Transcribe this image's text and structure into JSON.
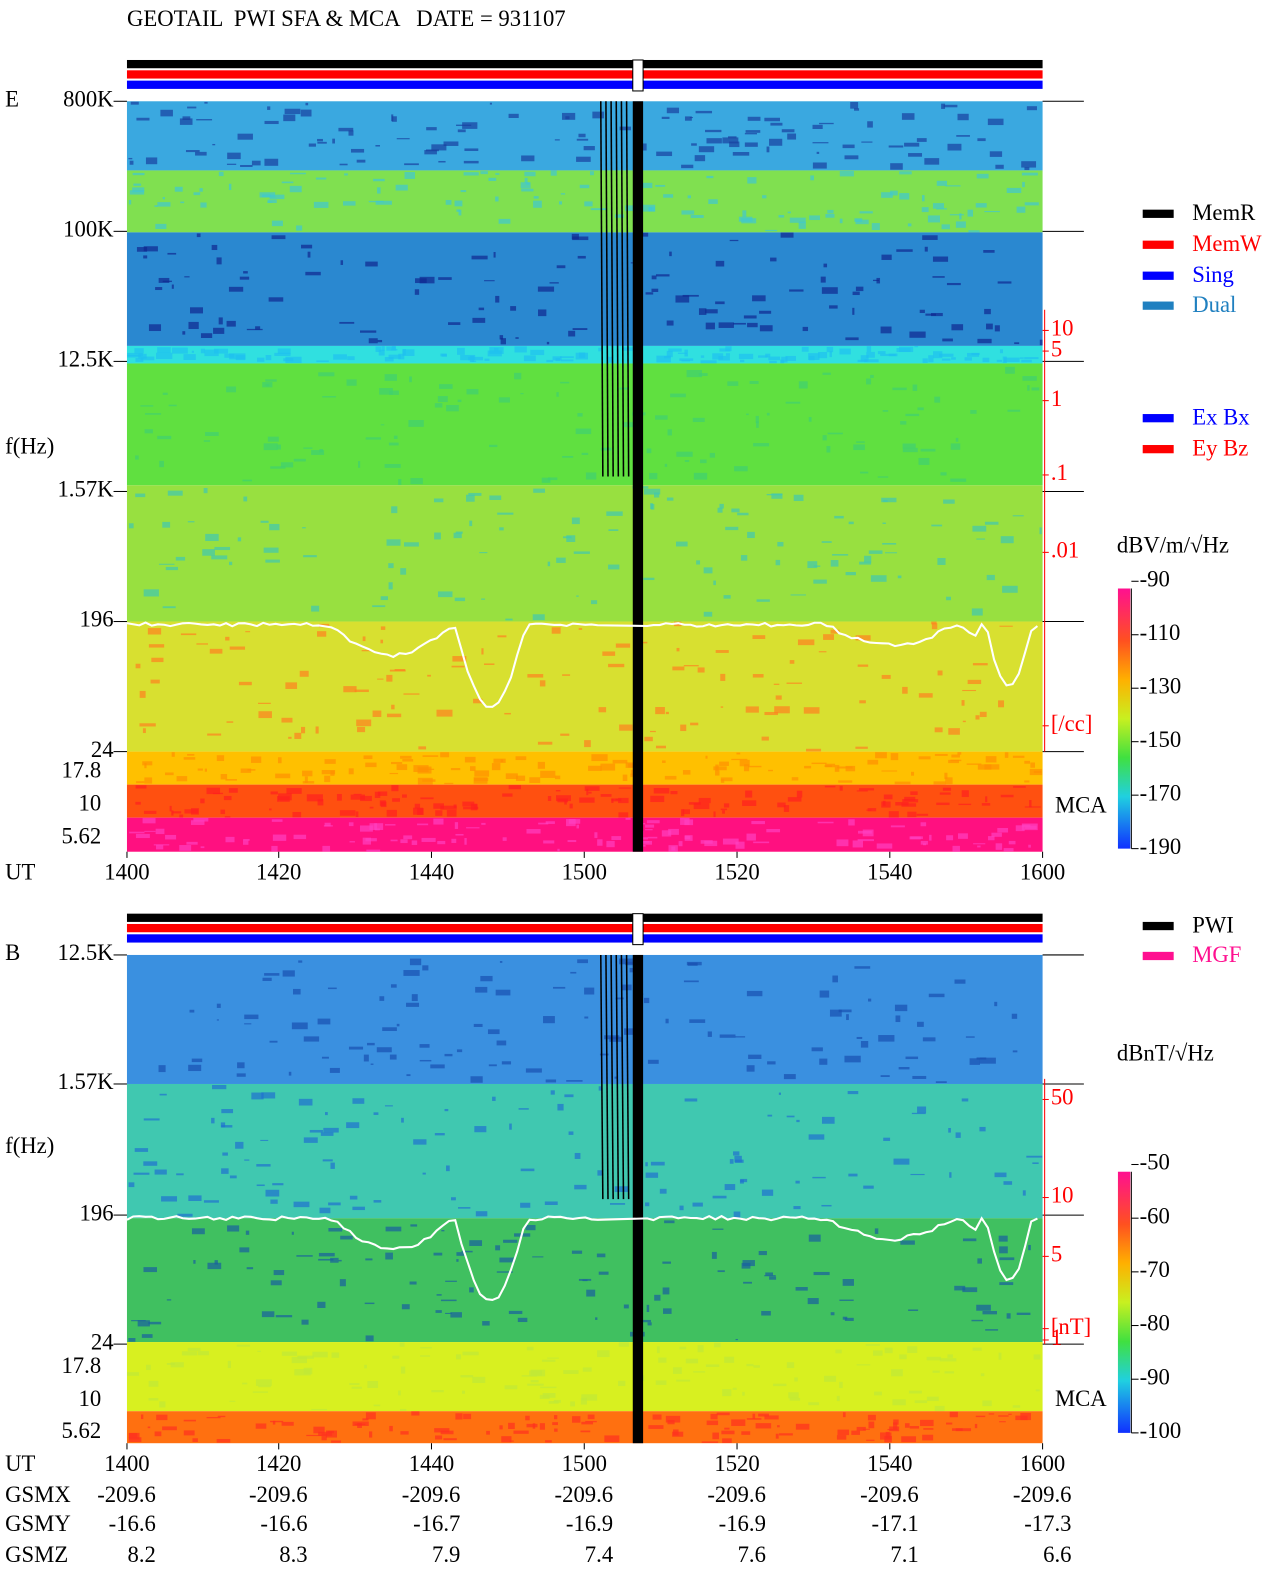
{
  "title": "GEOTAIL  PWI SFA & MCA   DATE = 931107",
  "panels": [
    {
      "label": "E",
      "axis_label": "f(Hz)",
      "freq_ticks": [
        "800K",
        "100K",
        "12.5K",
        "1.57K",
        "196",
        "24"
      ],
      "mca_ticks": [
        "17.8",
        "10",
        "5.62"
      ],
      "right_scale": [
        "10",
        "5",
        "1",
        ".1",
        ".01",
        "[/cc]"
      ],
      "mca_label": "MCA",
      "legend": [
        {
          "name": "MemR",
          "color": "#000000"
        },
        {
          "name": "MemW",
          "color": "#ff0000"
        },
        {
          "name": "Sing",
          "color": "#0000ff"
        },
        {
          "name": "Dual",
          "color": "#2080c0"
        },
        {
          "name": "Ex Bx",
          "color": "#0000ff"
        },
        {
          "name": "Ey Bz",
          "color": "#ff0000"
        }
      ],
      "colorbar": {
        "unit": "dBV/m/√Hz",
        "ticks": [
          -90,
          -110,
          -130,
          -150,
          -170,
          -190
        ]
      },
      "x_label": "UT",
      "x_ticks": [
        1400,
        1420,
        1440,
        1500,
        1520,
        1540,
        1600
      ]
    },
    {
      "label": "B",
      "axis_label": "f(Hz)",
      "freq_ticks": [
        "12.5K",
        "1.57K",
        "196",
        "24"
      ],
      "mca_ticks": [
        "17.8",
        "10",
        "5.62"
      ],
      "right_scale": [
        "50",
        "10",
        "5",
        "1",
        "[nT]"
      ],
      "mca_label": "MCA",
      "legend": [
        {
          "name": "PWI",
          "color": "#000000"
        },
        {
          "name": "MGF",
          "color": "#ff1090"
        }
      ],
      "colorbar": {
        "unit": "dBnT/√Hz",
        "ticks": [
          -50,
          -60,
          -70,
          -80,
          -90,
          -100
        ]
      },
      "x_label": "UT",
      "x_ticks": [
        1400,
        1420,
        1440,
        1500,
        1520,
        1540,
        1600
      ]
    }
  ],
  "orbit": {
    "rows": [
      {
        "label": "GSMX",
        "values": [
          -209.6,
          -209.6,
          -209.6,
          -209.6,
          -209.6,
          -209.6,
          -209.6
        ]
      },
      {
        "label": "GSMY",
        "values": [
          -16.6,
          -16.6,
          -16.7,
          -16.9,
          -16.9,
          -17.1,
          -17.3
        ]
      },
      {
        "label": "GSMZ",
        "values": [
          8.2,
          8.3,
          7.9,
          7.4,
          7.6,
          7.1,
          6.6
        ]
      }
    ]
  }
}
